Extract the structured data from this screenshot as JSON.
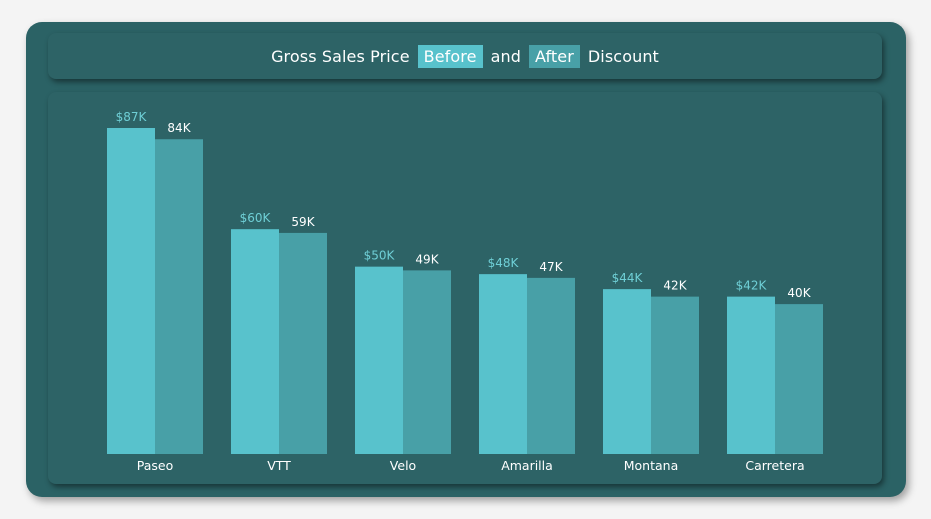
{
  "title": {
    "part1": "Gross Sales Price",
    "before": "Before",
    "and": "and",
    "after": "After",
    "part2": "Discount"
  },
  "colors": {
    "before": "#58c2cc",
    "after": "#48a0a7"
  },
  "chart_data": {
    "type": "bar",
    "categories": [
      "Paseo",
      "VTT",
      "Velo",
      "Amarilla",
      "Montana",
      "Carretera"
    ],
    "series": [
      {
        "values": [
          87,
          60,
          50,
          48,
          44,
          42
        ],
        "labels": [
          "$87K",
          "$60K",
          "$50K",
          "$48K",
          "$44K",
          "$42K"
        ]
      },
      {
        "values": [
          84,
          59,
          49,
          47,
          42,
          40
        ],
        "labels": [
          "84K",
          "59K",
          "49K",
          "47K",
          "42K",
          "40K"
        ]
      }
    ],
    "ylim": [
      0,
      87
    ],
    "grid": false,
    "legend": "none"
  }
}
